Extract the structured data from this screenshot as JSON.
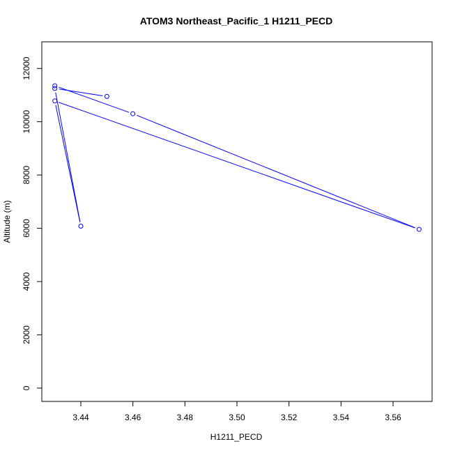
{
  "chart_data": {
    "type": "line",
    "title": "ATOM3 Northeast_Pacific_1 H1211_PECD",
    "xlabel": "H1211_PECD",
    "ylabel": "Altitude (m)",
    "xlim": [
      3.425,
      3.575
    ],
    "ylim": [
      -500,
      13000
    ],
    "xticks": [
      3.44,
      3.46,
      3.48,
      3.5,
      3.52,
      3.54,
      3.56
    ],
    "xtick_labels": [
      "3.44",
      "3.46",
      "3.48",
      "3.50",
      "3.52",
      "3.54",
      "3.56"
    ],
    "yticks": [
      0,
      2000,
      4000,
      6000,
      8000,
      10000,
      12000
    ],
    "ytick_labels": [
      "0",
      "2000",
      "4000",
      "6000",
      "8000",
      "10000",
      "12000"
    ],
    "grid": false,
    "series": [
      {
        "color": "#0000ff",
        "marker": "open-circle",
        "points": [
          {
            "x": 3.45,
            "y": 10950
          },
          {
            "x": 3.43,
            "y": 11250
          },
          {
            "x": 3.44,
            "y": 6080
          },
          {
            "x": 3.43,
            "y": 10780
          },
          {
            "x": 3.57,
            "y": 5960
          },
          {
            "x": 3.46,
            "y": 10300
          },
          {
            "x": 3.43,
            "y": 11350
          }
        ]
      }
    ]
  }
}
